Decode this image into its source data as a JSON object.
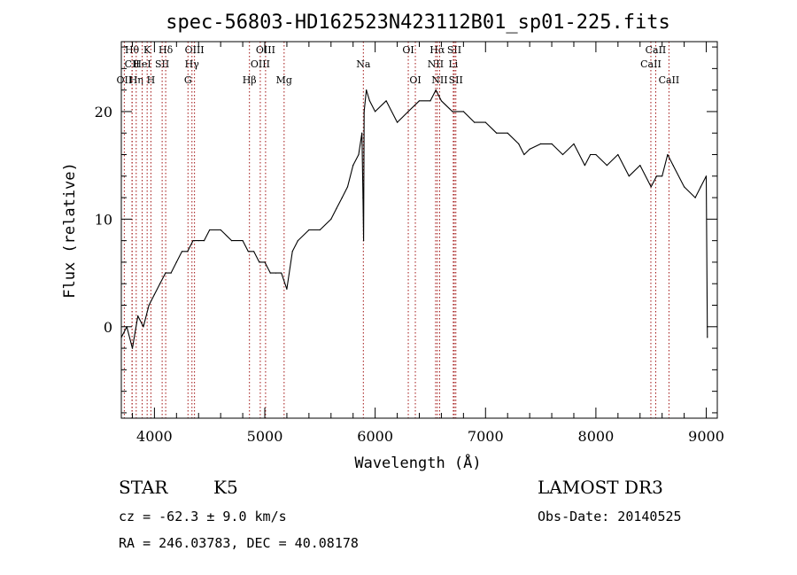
{
  "chart_data": {
    "type": "line",
    "title": "spec-56803-HD162523N423112B01_sp01-225.fits",
    "xlabel": "Wavelength (Å)",
    "ylabel": "Flux (relative)",
    "xlim": [
      3700,
      9100
    ],
    "ylim": [
      -8.5,
      26.5
    ],
    "xticks": [
      4000,
      5000,
      6000,
      7000,
      8000,
      9000
    ],
    "yticks": [
      0,
      10,
      20
    ],
    "grid": false,
    "series": [
      {
        "x": [
          3700,
          3750,
          3800,
          3850,
          3900,
          3950,
          4000,
          4050,
          4100,
          4150,
          4200,
          4250,
          4300,
          4350,
          4400,
          4450,
          4500,
          4600,
          4700,
          4800,
          4850,
          4900,
          4950,
          5000,
          5050,
          5100,
          5150,
          5200,
          5250,
          5300,
          5400,
          5500,
          5600,
          5650,
          5700,
          5750,
          5800,
          5850,
          5880,
          5890,
          5895,
          5900,
          5920,
          5950,
          6000,
          6100,
          6200,
          6300,
          6400,
          6500,
          6550,
          6600,
          6700,
          6800,
          6900,
          7000,
          7100,
          7200,
          7300,
          7350,
          7400,
          7500,
          7600,
          7700,
          7800,
          7900,
          7950,
          8000,
          8100,
          8200,
          8300,
          8400,
          8500,
          8550,
          8600,
          8650,
          8700,
          8800,
          8900,
          8950,
          9000,
          9010
        ],
        "y": [
          -1,
          0,
          -2,
          1,
          0,
          2,
          3,
          4,
          5,
          5,
          6,
          7,
          7,
          8,
          8,
          8,
          9,
          9,
          8,
          8,
          7,
          7,
          6,
          6,
          5,
          5,
          5,
          3.5,
          7,
          8,
          9,
          9,
          10,
          11,
          12,
          13,
          15,
          16,
          18,
          12,
          8,
          20,
          22,
          21,
          20,
          21,
          19,
          20,
          21,
          21,
          22,
          21,
          20,
          20,
          19,
          19,
          18,
          18,
          17,
          16,
          16.5,
          17,
          17,
          16,
          17,
          15,
          16,
          16,
          15,
          16,
          14,
          15,
          13,
          14,
          14,
          16,
          15,
          13,
          12,
          13,
          14,
          -1
        ]
      }
    ],
    "spectral_lines": [
      {
        "name": "Hθ",
        "wl": 3797,
        "row": 0
      },
      {
        "name": "CII",
        "wl": 3798,
        "row": 1
      },
      {
        "name": "OII",
        "wl": 3727,
        "row": 2
      },
      {
        "name": "Hη",
        "wl": 3835,
        "row": 2
      },
      {
        "name": "K",
        "wl": 3934,
        "row": 0
      },
      {
        "name": "HeI",
        "wl": 3889,
        "row": 1
      },
      {
        "name": "H",
        "wl": 3968,
        "row": 2
      },
      {
        "name": "Hδ",
        "wl": 4102,
        "row": 0
      },
      {
        "name": "SII",
        "wl": 4070,
        "row": 1
      },
      {
        "name": "OIII",
        "wl": 4363,
        "row": 0
      },
      {
        "name": "Hγ",
        "wl": 4340,
        "row": 1
      },
      {
        "name": "G",
        "wl": 4304,
        "row": 2
      },
      {
        "name": "Hβ",
        "wl": 4861,
        "row": 2
      },
      {
        "name": "OIII",
        "wl": 5007,
        "row": 0
      },
      {
        "name": "OIII",
        "wl": 4959,
        "row": 1
      },
      {
        "name": "Mg",
        "wl": 5175,
        "row": 2
      },
      {
        "name": "Na",
        "wl": 5893,
        "row": 1
      },
      {
        "name": "OI",
        "wl": 6300,
        "row": 0
      },
      {
        "name": "OI",
        "wl": 6364,
        "row": 2
      },
      {
        "name": "Hα",
        "wl": 6563,
        "row": 0
      },
      {
        "name": "SII",
        "wl": 6717,
        "row": 0
      },
      {
        "name": "NII",
        "wl": 6548,
        "row": 1
      },
      {
        "name": "Li",
        "wl": 6708,
        "row": 1
      },
      {
        "name": "NII",
        "wl": 6584,
        "row": 2
      },
      {
        "name": "SII",
        "wl": 6731,
        "row": 2
      },
      {
        "name": "CaII",
        "wl": 8542,
        "row": 0
      },
      {
        "name": "CaII",
        "wl": 8498,
        "row": 1
      },
      {
        "name": "CaII",
        "wl": 8662,
        "row": 2
      }
    ]
  },
  "info": {
    "object_class": "STAR",
    "subclass": "K5",
    "survey": "LAMOST DR3",
    "redshift": "cz = -62.3 ± 9.0 km/s",
    "obs_date": "Obs-Date: 20140525",
    "coords": "RA = 246.03783, DEC =  40.08178"
  },
  "colors": {
    "spectrum": "#000000",
    "line_marker": "#a01010"
  }
}
